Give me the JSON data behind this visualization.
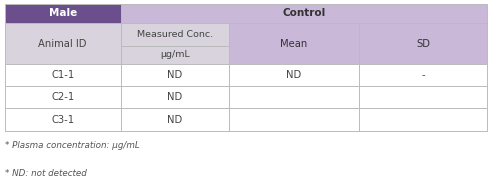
{
  "title_row": [
    "Male",
    "Control"
  ],
  "header_row1": [
    "Animal ID",
    "Measured Conc.",
    "Mean",
    "SD"
  ],
  "header_row2": [
    "",
    "μg/mL",
    "",
    ""
  ],
  "data_rows": [
    [
      "C1-1",
      "ND",
      "ND",
      "-"
    ],
    [
      "C2-1",
      "ND",
      "",
      ""
    ],
    [
      "C3-1",
      "ND",
      "",
      ""
    ]
  ],
  "footnotes": [
    "* Plasma concentration: μg/mL",
    "* ND: not detected"
  ],
  "col_male_bg": "#6b4f8c",
  "col_male_text": "#ffffff",
  "col_control_bg": "#c9b8d8",
  "col_control_text": "#333333",
  "col_animalid_bg": "#d8d3dc",
  "col_measured_bg": "#d8d3dc",
  "col_mean_bg": "#c9b8d8",
  "col_sd_bg": "#c9b8d8",
  "data_bg": "#ffffff",
  "border_color": "#bbbbbb",
  "text_color": "#444444",
  "footnote_color": "#555555",
  "figsize": [
    4.92,
    1.79
  ],
  "dpi": 100
}
